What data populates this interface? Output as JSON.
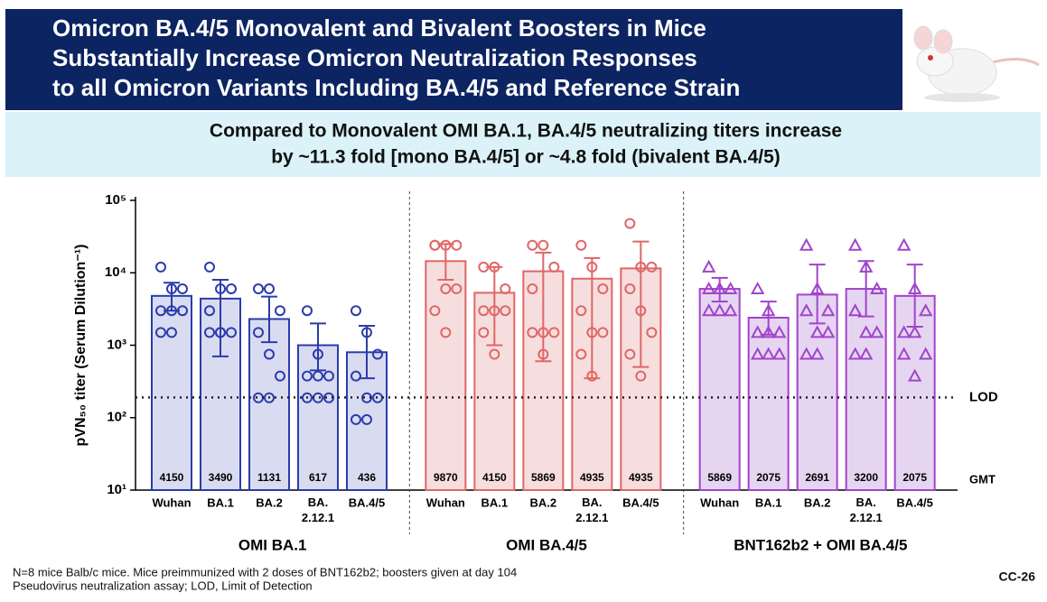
{
  "header": {
    "title_lines": [
      "Omicron BA.4/5 Monovalent and Bivalent Boosters in Mice",
      "Substantially Increase Omicron Neutralization Responses",
      "to all Omicron Variants Including BA.4/5 and Reference Strain"
    ],
    "subtitle_lines": [
      "Compared to Monovalent OMI BA.1, BA.4/5 neutralizing titers increase",
      "by ~11.3 fold [mono BA.4/5] or ~4.8 fold (bivalent BA.4/5)"
    ]
  },
  "chart_data": {
    "type": "bar",
    "log_scale": true,
    "y_label": "pVN₅₀ titer (Serum Dilution⁻¹)",
    "ylim": [
      10,
      100000
    ],
    "yticks": [
      {
        "value": 10,
        "label": "10¹"
      },
      {
        "value": 100,
        "label": "10²"
      },
      {
        "value": 1000,
        "label": "10³"
      },
      {
        "value": 10000,
        "label": "10⁴"
      },
      {
        "value": 100000,
        "label": "10⁵"
      }
    ],
    "lod": {
      "value": 190,
      "label": "LOD"
    },
    "gmt_label": "GMT",
    "groups": [
      {
        "name": "OMI BA.1",
        "color": "#2b3cab",
        "fill": "#d9dcf1",
        "marker": "circle",
        "categories": [
          "Wuhan",
          "BA.1",
          "BA.2",
          "BA.\n2.12.1",
          "BA.4/5"
        ],
        "values": [
          4800,
          4400,
          2300,
          1000,
          800
        ],
        "error_high": [
          7300,
          8000,
          4700,
          2000,
          1850
        ],
        "error_low": [
          3000,
          700,
          1100,
          450,
          350
        ],
        "gmt": [
          4150,
          3490,
          1131,
          617,
          436
        ],
        "points": [
          [
            12000,
            6000,
            6000,
            3000,
            3000,
            3000,
            1500,
            1500
          ],
          [
            12000,
            6000,
            6000,
            3000,
            1500,
            1500,
            1500,
            1500
          ],
          [
            6000,
            6000,
            3000,
            1500,
            750,
            375,
            188,
            188
          ],
          [
            3000,
            750,
            375,
            375,
            375,
            188,
            188,
            188
          ],
          [
            3000,
            1500,
            750,
            375,
            188,
            188,
            94,
            94
          ]
        ]
      },
      {
        "name": "OMI BA.4/5",
        "color": "#e06666",
        "fill": "#f6dede",
        "marker": "circle",
        "categories": [
          "Wuhan",
          "BA.1",
          "BA.2",
          "BA.\n2.12.1",
          "BA.4/5"
        ],
        "values": [
          14500,
          5300,
          10500,
          8300,
          11500
        ],
        "error_high": [
          25000,
          12000,
          19000,
          16000,
          27000
        ],
        "error_low": [
          8000,
          1000,
          600,
          350,
          500
        ],
        "gmt": [
          9870,
          4150,
          5869,
          4935,
          4935
        ],
        "points": [
          [
            24000,
            24000,
            24000,
            24000,
            6000,
            6000,
            3000,
            1500
          ],
          [
            12000,
            12000,
            6000,
            3000,
            3000,
            3000,
            1500,
            750
          ],
          [
            24000,
            24000,
            12000,
            6000,
            1500,
            1500,
            1500,
            750
          ],
          [
            24000,
            12000,
            6000,
            3000,
            1500,
            1500,
            750,
            375
          ],
          [
            48000,
            12000,
            12000,
            6000,
            3000,
            1500,
            750,
            375
          ]
        ]
      },
      {
        "name": "BNT162b2 + OMI BA.4/5",
        "color": "#a044cc",
        "fill": "#e6d5f0",
        "marker": "triangle",
        "categories": [
          "Wuhan",
          "BA.1",
          "BA.2",
          "BA.\n2.12.1",
          "BA.4/5"
        ],
        "values": [
          6000,
          2400,
          5000,
          6000,
          4800
        ],
        "error_high": [
          8500,
          4000,
          13000,
          14500,
          13000
        ],
        "error_low": [
          4000,
          1400,
          2000,
          2500,
          1800
        ],
        "gmt": [
          5869,
          2075,
          2691,
          3200,
          2075
        ],
        "points": [
          [
            12000,
            6000,
            6000,
            6000,
            6000,
            3000,
            3000,
            3000
          ],
          [
            6000,
            3000,
            1500,
            1500,
            1500,
            750,
            750,
            750
          ],
          [
            24000,
            6000,
            3000,
            3000,
            1500,
            1500,
            750,
            750
          ],
          [
            24000,
            12000,
            6000,
            3000,
            1500,
            1500,
            750,
            750
          ],
          [
            24000,
            6000,
            3000,
            1500,
            1500,
            750,
            750,
            375
          ]
        ]
      }
    ]
  },
  "footnotes": [
    "N=8 mice Balb/c mice. Mice preimmunized with 2 doses of BNT162b2; boosters given at day 104",
    "Pseudovirus neutralization assay; LOD, Limit of Detection"
  ],
  "slide_number": "CC-26"
}
